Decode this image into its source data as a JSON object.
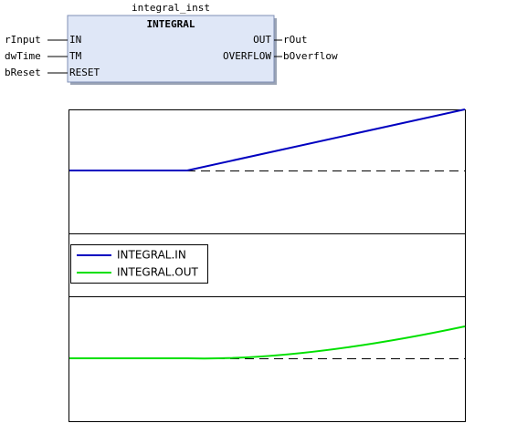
{
  "block": {
    "instance": "integral_inst",
    "type": "INTEGRAL",
    "inputs": [
      {
        "variable": "rInput",
        "pin": "IN"
      },
      {
        "variable": "dwTime",
        "pin": "TM"
      },
      {
        "variable": "bReset",
        "pin": "RESET"
      }
    ],
    "outputs": [
      {
        "pin": "OUT",
        "variable": "rOut"
      },
      {
        "pin": "OVERFLOW",
        "variable": "bOverflow"
      }
    ]
  },
  "legend": [
    "INTEGRAL.IN",
    "INTEGRAL.OUT"
  ]
}
